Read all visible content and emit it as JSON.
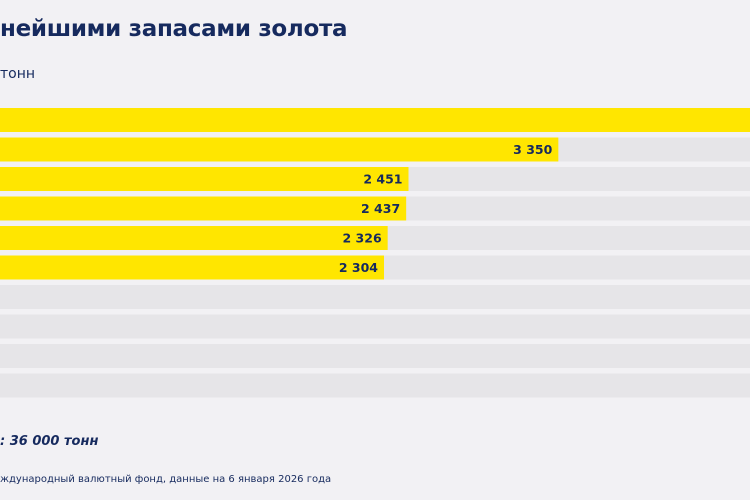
{
  "title": "нейшими запасами золота",
  "subtitle": "тонн",
  "chart_data": {
    "type": "bar",
    "orientation": "horizontal",
    "categories": [
      "",
      "",
      "",
      "",
      "",
      "",
      "",
      "",
      "",
      ""
    ],
    "values": [
      null,
      3350,
      2451,
      2437,
      2326,
      2304,
      null,
      null,
      null,
      null
    ],
    "value_labels": [
      "",
      "3 350",
      "2 451",
      "2 437",
      "2 326",
      "2 304",
      "",
      "",
      "",
      ""
    ],
    "xlim": [
      0,
      4500
    ],
    "colors": {
      "bar": "#ffe600",
      "track": "#e6e5e8",
      "text": "#162a5e"
    }
  },
  "total_text": ": 36 000 тонн",
  "source_text": "ждународный валютный фонд, данные на 6 января 2026 года"
}
